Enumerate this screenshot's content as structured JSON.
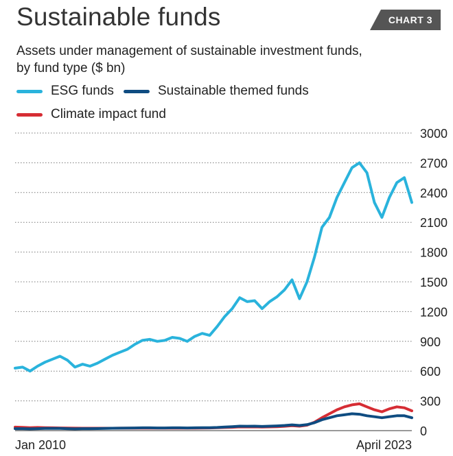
{
  "header": {
    "title": "Sustainable funds",
    "badge": "CHART 3",
    "subtitle_line1": "Assets under management of sustainable investment funds,",
    "subtitle_line2": "by fund type ($ bn)"
  },
  "colors": {
    "esg": "#2ab3dc",
    "themed": "#0f4c81",
    "climate": "#d62d34",
    "badge": "#555555",
    "grid": "#777777"
  },
  "chart_data": {
    "type": "line",
    "title": "Sustainable funds",
    "subtitle": "Assets under management of sustainable investment funds, by fund type ($ bn)",
    "x_start_label": "Jan 2010",
    "x_end_label": "April 2023",
    "ylim": [
      0,
      3000
    ],
    "yticks": [
      0,
      300,
      600,
      900,
      1200,
      1500,
      1800,
      2100,
      2400,
      2700,
      3000
    ],
    "grid": true,
    "legend_position": "top-left",
    "x": [
      2010.0,
      2010.25,
      2010.5,
      2010.75,
      2011.0,
      2011.25,
      2011.5,
      2011.75,
      2012.0,
      2012.25,
      2012.5,
      2012.75,
      2013.0,
      2013.25,
      2013.5,
      2013.75,
      2014.0,
      2014.25,
      2014.5,
      2014.75,
      2015.0,
      2015.25,
      2015.5,
      2015.75,
      2016.0,
      2016.25,
      2016.5,
      2016.75,
      2017.0,
      2017.25,
      2017.5,
      2017.75,
      2018.0,
      2018.25,
      2018.5,
      2018.75,
      2019.0,
      2019.25,
      2019.5,
      2019.75,
      2020.0,
      2020.25,
      2020.5,
      2020.75,
      2021.0,
      2021.25,
      2021.5,
      2021.75,
      2022.0,
      2022.25,
      2022.5,
      2022.75,
      2023.0,
      2023.25
    ],
    "series": [
      {
        "name": "ESG funds",
        "color": "#2ab3dc",
        "values": [
          630,
          640,
          600,
          650,
          690,
          720,
          750,
          710,
          640,
          670,
          650,
          680,
          720,
          760,
          790,
          820,
          870,
          910,
          920,
          900,
          910,
          940,
          930,
          900,
          950,
          980,
          960,
          1050,
          1150,
          1230,
          1340,
          1300,
          1310,
          1230,
          1300,
          1350,
          1420,
          1520,
          1330,
          1500,
          1750,
          2050,
          2150,
          2350,
          2500,
          2650,
          2700,
          2600,
          2300,
          2150,
          2350,
          2500,
          2550,
          2300
        ]
      },
      {
        "name": "Sustainable themed funds",
        "color": "#0f4c81",
        "values": [
          20,
          20,
          18,
          20,
          22,
          22,
          22,
          20,
          18,
          20,
          20,
          21,
          22,
          24,
          25,
          26,
          27,
          28,
          28,
          27,
          27,
          28,
          28,
          27,
          28,
          29,
          30,
          32,
          36,
          40,
          45,
          44,
          45,
          42,
          45,
          48,
          52,
          58,
          52,
          60,
          80,
          110,
          130,
          150,
          160,
          170,
          165,
          150,
          140,
          130,
          140,
          150,
          150,
          130
        ]
      },
      {
        "name": "Climate impact fund",
        "color": "#d62d34",
        "values": [
          35,
          33,
          30,
          32,
          30,
          28,
          27,
          26,
          25,
          24,
          24,
          24,
          24,
          24,
          25,
          25,
          25,
          25,
          25,
          25,
          25,
          25,
          25,
          25,
          25,
          26,
          27,
          29,
          32,
          34,
          38,
          37,
          38,
          36,
          38,
          40,
          44,
          50,
          45,
          55,
          85,
          130,
          170,
          210,
          240,
          260,
          270,
          240,
          210,
          190,
          220,
          240,
          230,
          200
        ]
      }
    ]
  }
}
